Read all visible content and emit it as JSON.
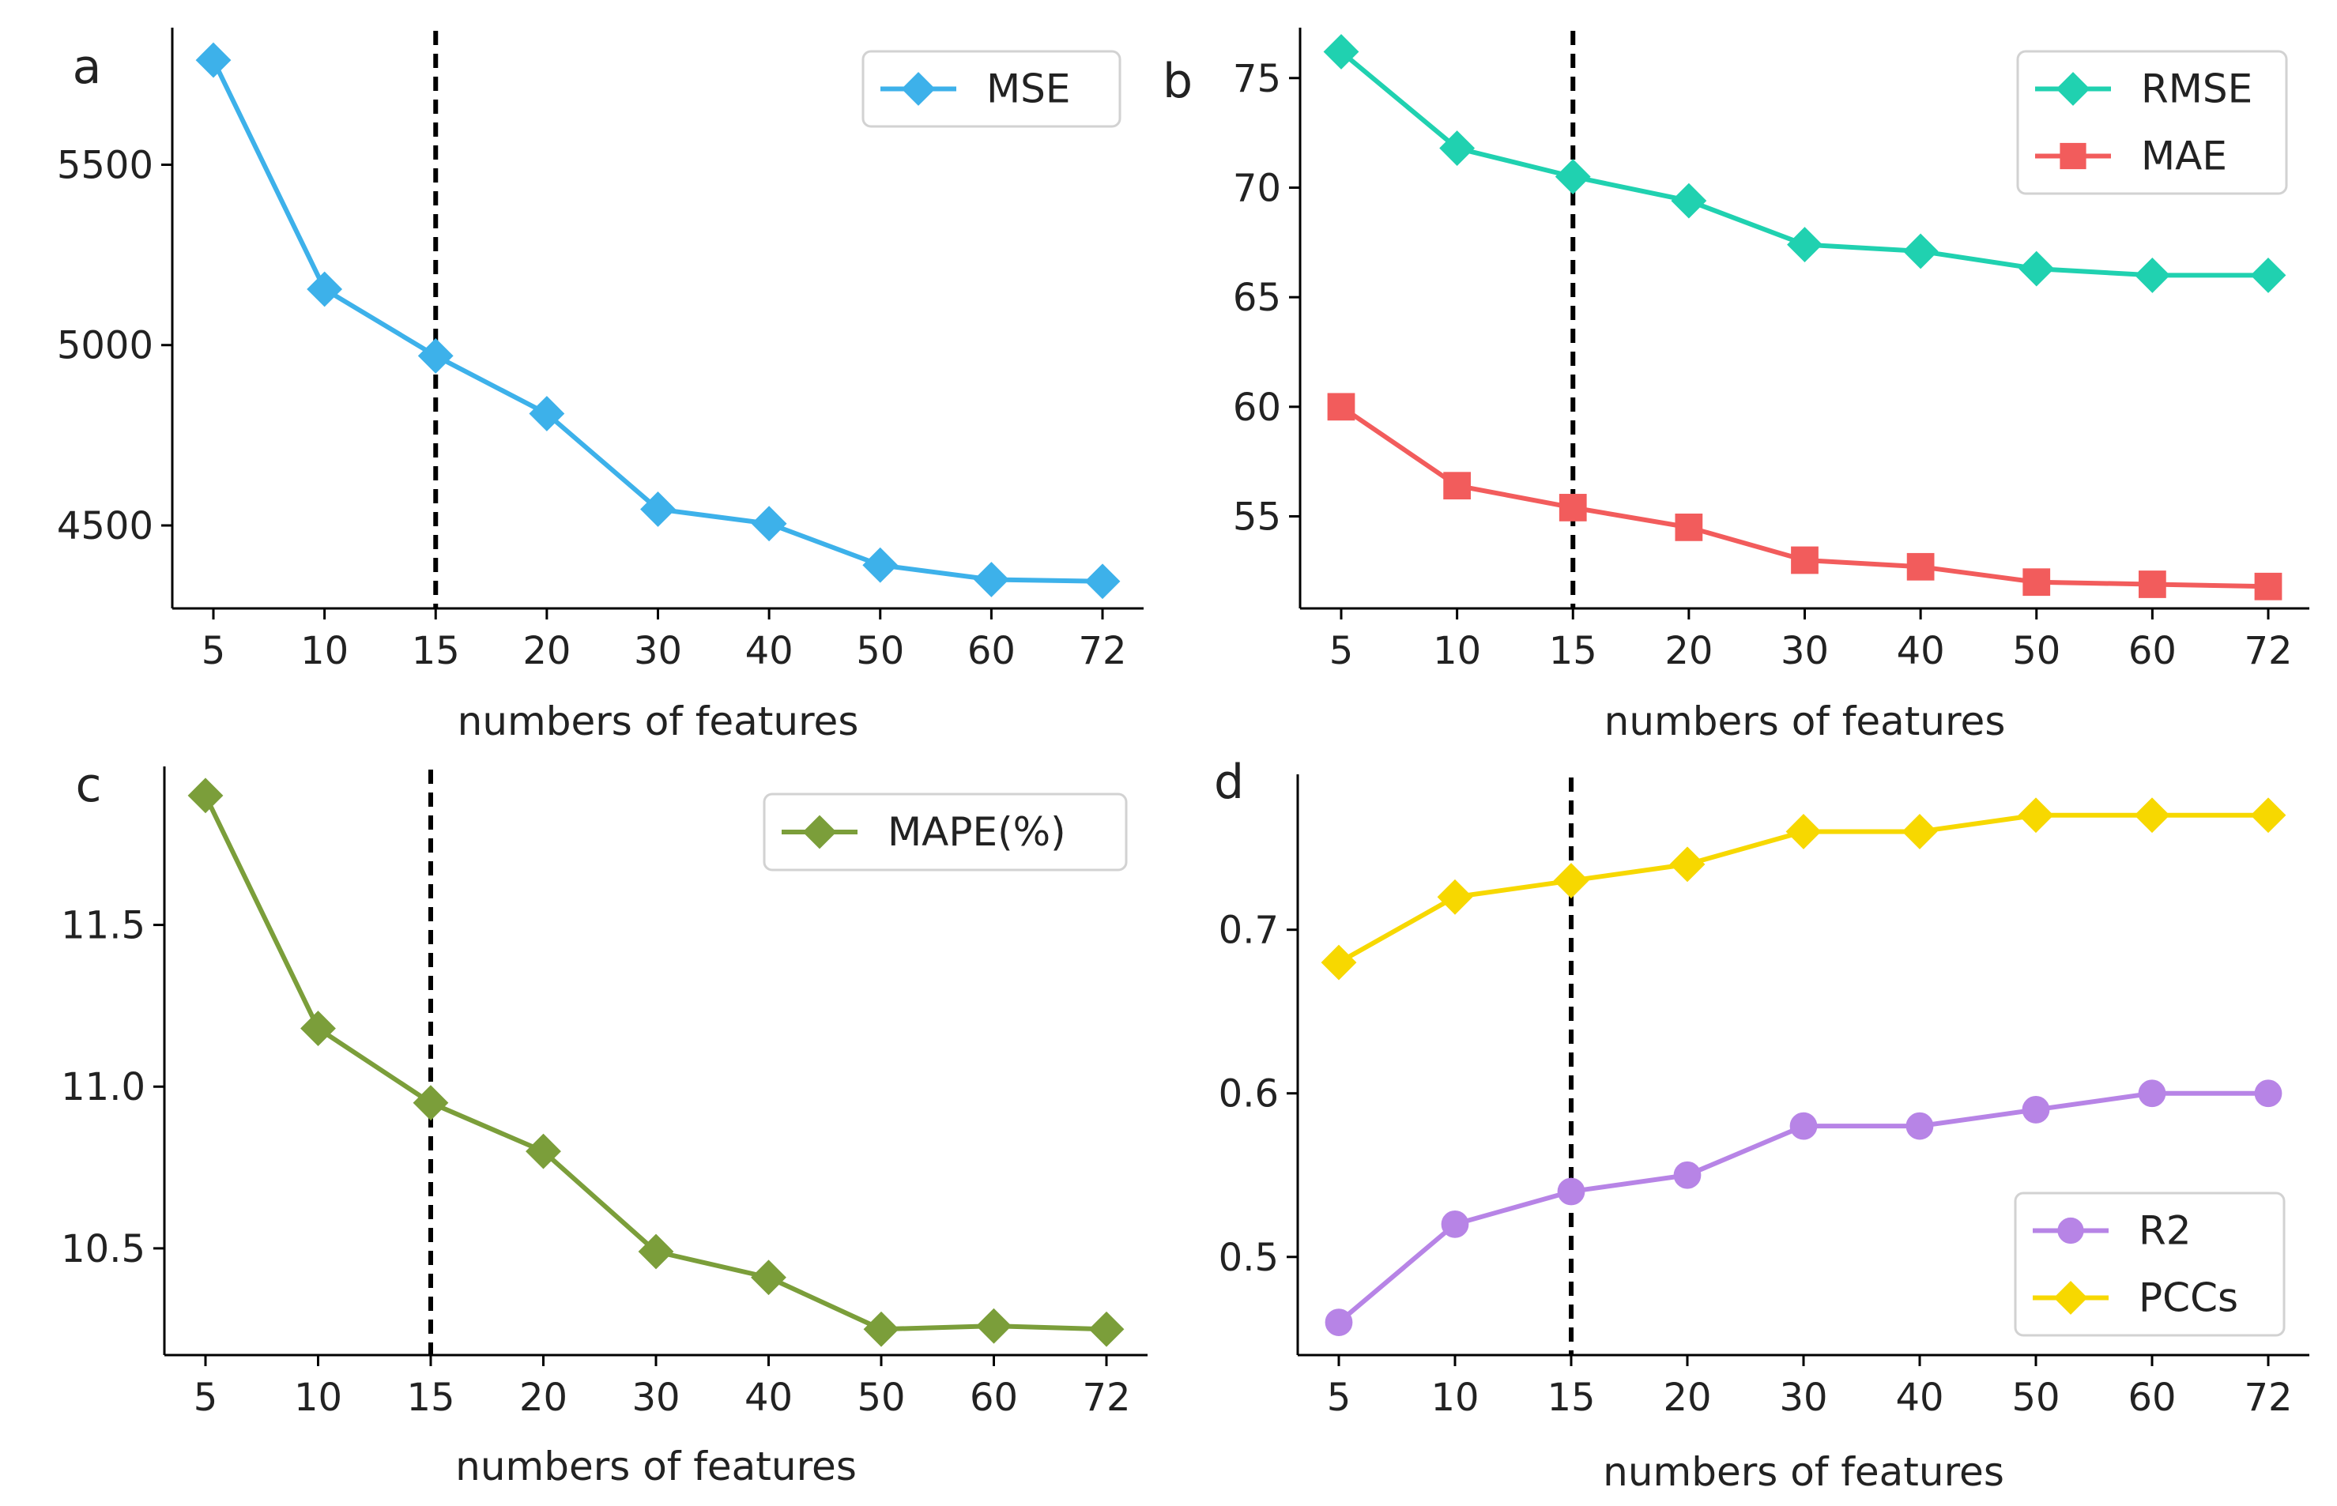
{
  "chart_data": [
    {
      "id": "a",
      "type": "line",
      "panel_label": "a",
      "categories": [
        "5",
        "10",
        "15",
        "20",
        "30",
        "40",
        "50",
        "60",
        "72"
      ],
      "xlabel": "numbers of features",
      "ylabel": "",
      "ylim": [
        4270,
        5880
      ],
      "yticks": [
        4500,
        5000,
        5500
      ],
      "ytick_labels": [
        "4500",
        "5000",
        "5500"
      ],
      "vline_category": "15",
      "legend_position": "top-right",
      "series": [
        {
          "name": "MSE",
          "color": "#3db1ea",
          "marker": "diamond",
          "values": [
            5790,
            5155,
            4970,
            4810,
            4545,
            4505,
            4390,
            4350,
            4345
          ]
        }
      ]
    },
    {
      "id": "b",
      "type": "line",
      "panel_label": "b",
      "categories": [
        "5",
        "10",
        "15",
        "20",
        "30",
        "40",
        "50",
        "60",
        "72"
      ],
      "xlabel": "numbers of features",
      "ylabel": "",
      "ylim": [
        50.8,
        77.3
      ],
      "yticks": [
        55,
        60,
        65,
        70,
        75
      ],
      "ytick_labels": [
        "55",
        "60",
        "65",
        "70",
        "75"
      ],
      "vline_category": "15",
      "legend_position": "top-right",
      "series": [
        {
          "name": "RMSE",
          "color": "#20d1b0",
          "marker": "diamond",
          "values": [
            76.2,
            71.8,
            70.5,
            69.4,
            67.4,
            67.1,
            66.3,
            66.0,
            66.0
          ]
        },
        {
          "name": "MAE",
          "color": "#f25c5c",
          "marker": "square",
          "values": [
            60.0,
            56.4,
            55.4,
            54.5,
            53.0,
            52.7,
            52.0,
            51.9,
            51.8
          ]
        }
      ]
    },
    {
      "id": "c",
      "type": "line",
      "panel_label": "c",
      "categories": [
        "5",
        "10",
        "15",
        "20",
        "30",
        "40",
        "50",
        "60",
        "72"
      ],
      "xlabel": "numbers of features",
      "ylabel": "",
      "ylim": [
        10.17,
        11.99
      ],
      "yticks": [
        10.5,
        11.0,
        11.5
      ],
      "ytick_labels": [
        "10.5",
        "11.0",
        "11.5"
      ],
      "vline_category": "15",
      "legend_position": "top-right",
      "series": [
        {
          "name": "MAPE(%)",
          "color": "#7b9e3a",
          "marker": "diamond",
          "values": [
            11.9,
            11.18,
            10.95,
            10.8,
            10.49,
            10.41,
            10.25,
            10.26,
            10.25
          ]
        }
      ]
    },
    {
      "id": "d",
      "type": "line",
      "panel_label": "d",
      "categories": [
        "5",
        "10",
        "15",
        "20",
        "30",
        "40",
        "50",
        "60",
        "72"
      ],
      "xlabel": "numbers of features",
      "ylabel": "",
      "ylim": [
        0.44,
        0.795
      ],
      "yticks": [
        0.5,
        0.6,
        0.7
      ],
      "ytick_labels": [
        "0.5",
        "0.6",
        "0.7"
      ],
      "vline_category": "15",
      "legend_position": "bottom-right",
      "series": [
        {
          "name": "R2",
          "color": "#b784e6",
          "marker": "circle",
          "values": [
            0.46,
            0.52,
            0.54,
            0.55,
            0.58,
            0.58,
            0.59,
            0.6,
            0.6
          ]
        },
        {
          "name": "PCCs",
          "color": "#f7d800",
          "marker": "diamond",
          "values": [
            0.68,
            0.72,
            0.73,
            0.74,
            0.76,
            0.76,
            0.77,
            0.77,
            0.77
          ]
        }
      ]
    }
  ]
}
